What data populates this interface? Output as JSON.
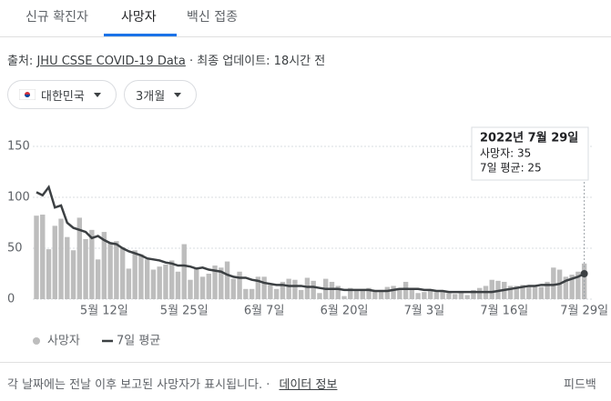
{
  "tabs": [
    "신규 확진자",
    "사망자",
    "백신 접종"
  ],
  "source": {
    "prefix": "출처:",
    "link": "JHU CSSE COVID-19 Data",
    "updated": "· 최종 업데이트: 18시간 전"
  },
  "filters": [
    "대한민국",
    "3개월"
  ],
  "tooltip": {
    "date": "2022년 7월 29일",
    "line1": "사망자: 35",
    "line2": "7일 평균: 25"
  },
  "footer": {
    "note": "각 날짜에는 전날 이후 보고된 사망자가 표시됩니다. ·",
    "link": "데이터 정보",
    "feedback": "피드백"
  },
  "chart_data": {
    "type": "bar",
    "categories": [
      null,
      null,
      null,
      null,
      null,
      null,
      null,
      null,
      null,
      null,
      null,
      "5월 12일",
      null,
      null,
      null,
      null,
      null,
      null,
      null,
      null,
      null,
      null,
      null,
      null,
      "5월 25일",
      null,
      null,
      null,
      null,
      null,
      null,
      null,
      null,
      null,
      null,
      null,
      null,
      "6월 7일",
      null,
      null,
      null,
      null,
      null,
      null,
      null,
      null,
      null,
      null,
      null,
      null,
      "6월 20일",
      null,
      null,
      null,
      null,
      null,
      null,
      null,
      null,
      null,
      null,
      null,
      null,
      "7월 3일",
      null,
      null,
      null,
      null,
      null,
      null,
      null,
      null,
      null,
      null,
      null,
      null,
      "7월 16일",
      null,
      null,
      null,
      null,
      null,
      null,
      null,
      null,
      null,
      null,
      null,
      null,
      "7월 29일"
    ],
    "series": [
      {
        "name": "사망자",
        "type": "bar",
        "color": "#bdbdbd",
        "values": [
          82,
          83,
          49,
          72,
          79,
          61,
          48,
          80,
          59,
          68,
          39,
          66,
          55,
          57,
          51,
          30,
          48,
          44,
          39,
          29,
          32,
          34,
          38,
          27,
          54,
          19,
          30,
          22,
          25,
          33,
          31,
          37,
          20,
          27,
          10,
          10,
          22,
          22,
          14,
          10,
          17,
          20,
          19,
          9,
          21,
          18,
          6,
          20,
          17,
          13,
          3,
          11,
          9,
          9,
          11,
          8,
          9,
          12,
          13,
          11,
          17,
          10,
          6,
          7,
          9,
          7,
          8,
          6,
          5,
          8,
          4,
          9,
          11,
          13,
          19,
          18,
          17,
          13,
          13,
          14,
          13,
          13,
          12,
          17,
          31,
          29,
          22,
          24,
          27,
          35
        ]
      },
      {
        "name": "7일 평균",
        "type": "line",
        "color": "#3c4043",
        "values": [
          105,
          102,
          110,
          90,
          92,
          75,
          70,
          68,
          66,
          60,
          62,
          58,
          55,
          54,
          50,
          47,
          45,
          43,
          40,
          39,
          38,
          36,
          35,
          33,
          33,
          32,
          30,
          31,
          29,
          28,
          27,
          24,
          22,
          21,
          21,
          19,
          18,
          16,
          15,
          14,
          14,
          13,
          13,
          13,
          12,
          12,
          11,
          10,
          10,
          10,
          9,
          9,
          9,
          9,
          9,
          8,
          8,
          8,
          9,
          10,
          10,
          10,
          10,
          9,
          9,
          8,
          8,
          7,
          7,
          7,
          7,
          7,
          7,
          7,
          7,
          8,
          9,
          10,
          11,
          12,
          13,
          13,
          14,
          14,
          14,
          15,
          18,
          20,
          22,
          25
        ]
      }
    ],
    "ylim": [
      0,
      150
    ],
    "yticks": [
      0,
      50,
      100,
      150
    ],
    "grid": true
  }
}
